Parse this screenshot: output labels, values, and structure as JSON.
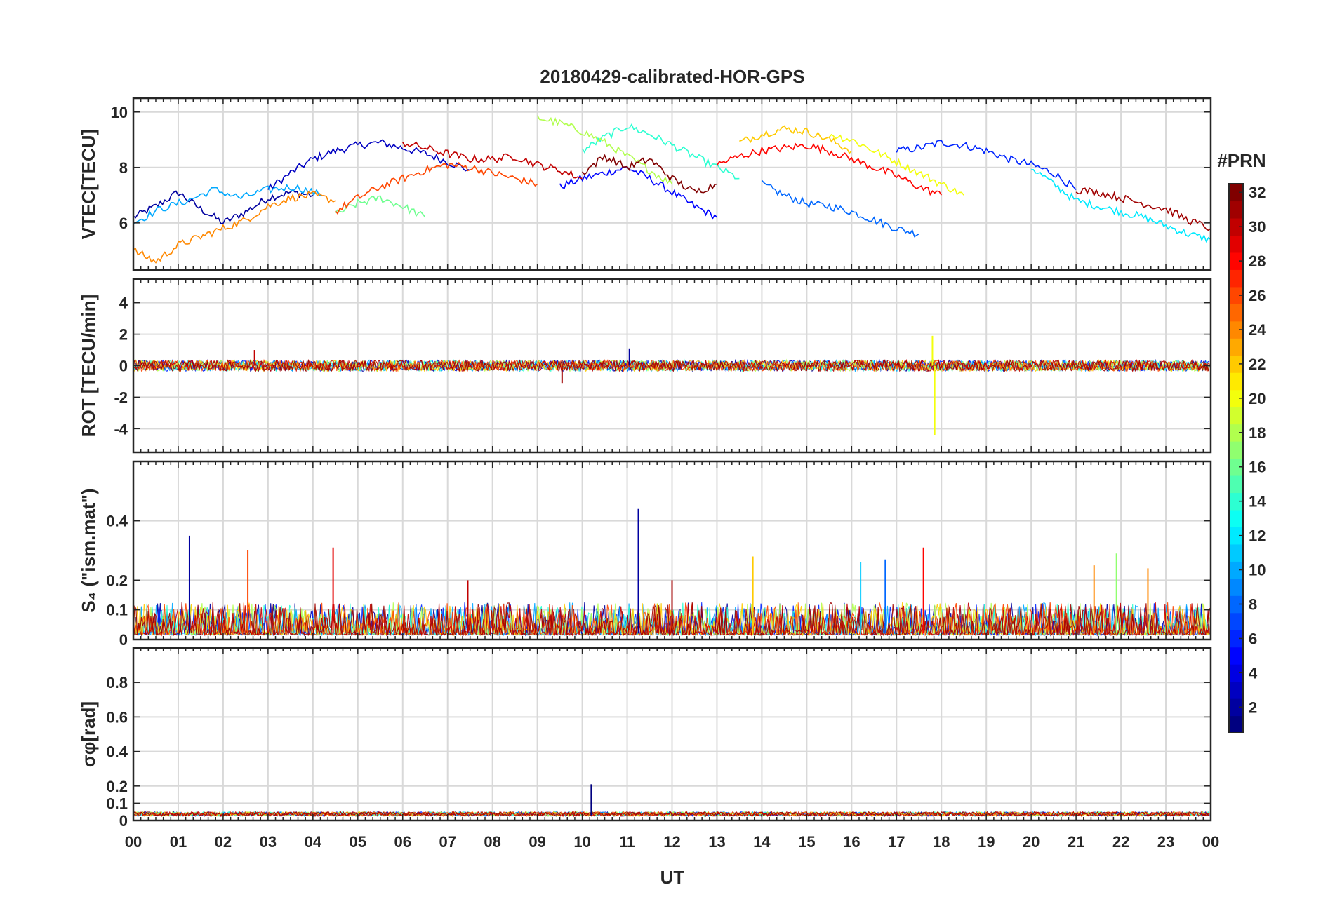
{
  "chart_data": {
    "type": "line",
    "title": "20180429-calibrated-HOR-GPS",
    "xlabel": "UT",
    "x_range": [
      0,
      24
    ],
    "x_tick_labels": [
      "00",
      "01",
      "02",
      "03",
      "04",
      "05",
      "06",
      "07",
      "08",
      "09",
      "10",
      "11",
      "12",
      "13",
      "14",
      "15",
      "16",
      "17",
      "18",
      "19",
      "20",
      "21",
      "22",
      "23",
      "00"
    ],
    "grid": true,
    "colorbar": {
      "label": "#PRN",
      "range": [
        1,
        32
      ],
      "colormap": "jet",
      "tick_labels": [
        "2",
        "4",
        "6",
        "8",
        "10",
        "12",
        "14",
        "16",
        "18",
        "20",
        "22",
        "24",
        "26",
        "28",
        "30",
        "32"
      ],
      "colors": [
        "#00008f",
        "#0000ff",
        "#0080ff",
        "#00ffff",
        "#80ff80",
        "#ffff00",
        "#ff8000",
        "#ff0000",
        "#800000"
      ]
    },
    "panels": [
      {
        "id": "vtec",
        "ylabel": "VTEC[TECU]",
        "ylim": [
          4.3,
          10.5
        ],
        "yticks": [
          "6",
          "8",
          "10"
        ],
        "series": [
          {
            "prn": 2,
            "x": [
              0,
              0.5,
              1,
              1.5,
              2,
              2.5,
              3,
              3.5,
              4
            ],
            "y": [
              6.2,
              6.6,
              7.1,
              6.5,
              6.0,
              6.4,
              6.9,
              7.1,
              7.0
            ]
          },
          {
            "prn": 3,
            "x": [
              3,
              3.5,
              4,
              4.5,
              5,
              5.5,
              6,
              6.5,
              7,
              7.5
            ],
            "y": [
              7.2,
              7.8,
              8.3,
              8.6,
              8.8,
              8.9,
              8.7,
              8.5,
              8.2,
              7.9
            ]
          },
          {
            "prn": 5,
            "x": [
              9.5,
              10,
              10.5,
              11,
              11.5,
              12,
              12.5,
              13
            ],
            "y": [
              7.3,
              7.6,
              7.8,
              8.0,
              7.6,
              7.1,
              6.6,
              6.2
            ]
          },
          {
            "prn": 6,
            "x": [
              17,
              17.5,
              18,
              18.5,
              19,
              19.5,
              20,
              20.5,
              21
            ],
            "y": [
              8.6,
              8.7,
              8.9,
              8.8,
              8.6,
              8.3,
              8.1,
              7.8,
              7.2
            ]
          },
          {
            "prn": 8,
            "x": [
              14,
              14.5,
              15,
              15.5,
              16,
              16.5,
              17,
              17.5
            ],
            "y": [
              7.4,
              7.0,
              6.7,
              6.6,
              6.4,
              6.1,
              5.8,
              5.6
            ]
          },
          {
            "prn": 10,
            "x": [
              0,
              0.6,
              1.2,
              1.8,
              2.4,
              3,
              3.6,
              4.2
            ],
            "y": [
              6.0,
              6.5,
              6.8,
              7.2,
              6.9,
              7.2,
              7.3,
              7.0
            ]
          },
          {
            "prn": 12,
            "x": [
              20,
              20.5,
              21,
              21.5,
              22,
              22.5,
              23,
              23.5,
              24
            ],
            "y": [
              8.0,
              7.4,
              6.8,
              6.6,
              6.4,
              6.2,
              5.9,
              5.6,
              5.4
            ]
          },
          {
            "prn": 14,
            "x": [
              10,
              10.5,
              11,
              11.5,
              12,
              12.5,
              13,
              13.5
            ],
            "y": [
              8.6,
              9.1,
              9.5,
              9.2,
              8.8,
              8.4,
              8.0,
              7.6
            ]
          },
          {
            "prn": 16,
            "x": [
              4.5,
              5,
              5.5,
              6,
              6.5
            ],
            "y": [
              6.3,
              6.7,
              6.9,
              6.6,
              6.2
            ]
          },
          {
            "prn": 18,
            "x": [
              9,
              9.5,
              10,
              10.5,
              11,
              11.5,
              12
            ],
            "y": [
              9.8,
              9.6,
              9.3,
              8.9,
              8.4,
              7.9,
              7.4
            ]
          },
          {
            "prn": 20,
            "x": [
              15.5,
              16,
              16.5,
              17,
              17.5,
              18,
              18.5
            ],
            "y": [
              9.2,
              9.0,
              8.6,
              8.2,
              7.8,
              7.4,
              7.0
            ]
          },
          {
            "prn": 22,
            "x": [
              13.5,
              14,
              14.5,
              15,
              15.5,
              16
            ],
            "y": [
              8.9,
              9.2,
              9.4,
              9.3,
              9.0,
              8.6
            ]
          },
          {
            "prn": 24,
            "x": [
              0,
              0.5,
              1,
              1.5,
              2,
              2.5,
              3,
              3.5,
              4,
              4.5
            ],
            "y": [
              5.0,
              4.6,
              5.2,
              5.5,
              5.8,
              6.1,
              6.6,
              6.9,
              7.0,
              6.8
            ]
          },
          {
            "prn": 26,
            "x": [
              4.5,
              5,
              5.5,
              6,
              6.5,
              7,
              7.5,
              8,
              8.5,
              9
            ],
            "y": [
              6.4,
              6.9,
              7.3,
              7.6,
              7.9,
              8.1,
              8.0,
              7.8,
              7.6,
              7.4
            ]
          },
          {
            "prn": 28,
            "x": [
              13,
              13.5,
              14,
              14.5,
              15,
              15.5,
              16,
              16.5,
              17,
              17.5,
              18
            ],
            "y": [
              8.1,
              8.4,
              8.6,
              8.7,
              8.8,
              8.6,
              8.3,
              8.0,
              7.7,
              7.3,
              7.0
            ]
          },
          {
            "prn": 30,
            "x": [
              6,
              6.5,
              7,
              7.5,
              8,
              8.5,
              9,
              9.5,
              10
            ],
            "y": [
              8.9,
              8.7,
              8.5,
              8.3,
              8.3,
              8.4,
              8.1,
              7.9,
              7.6
            ]
          },
          {
            "prn": 32,
            "x": [
              10,
              10.5,
              11,
              11.5,
              12,
              12.5,
              13
            ],
            "y": [
              7.8,
              8.4,
              8.0,
              8.3,
              7.6,
              7.1,
              7.4
            ]
          },
          {
            "prn": 31,
            "x": [
              21,
              21.5,
              22,
              22.5,
              23,
              23.5,
              24
            ],
            "y": [
              7.2,
              7.1,
              6.9,
              6.7,
              6.5,
              6.1,
              5.8
            ]
          }
        ]
      },
      {
        "id": "rot",
        "ylabel": "ROT [TECU/min]",
        "ylim": [
          -5.5,
          5.5
        ],
        "yticks": [
          "-4",
          "-2",
          "0",
          "2",
          "4"
        ],
        "spikes": [
          {
            "prn": 20,
            "x": 17.85,
            "y": -4.4
          },
          {
            "prn": 20,
            "x": 17.8,
            "y": 1.9
          },
          {
            "prn": 31,
            "x": 9.55,
            "y": -1.1
          },
          {
            "prn": 2,
            "x": 11.05,
            "y": 1.1
          },
          {
            "prn": 30,
            "x": 2.7,
            "y": 1.0
          }
        ]
      },
      {
        "id": "s4",
        "ylabel": "S₄ (\"ism.mat\")",
        "ylim": [
          0,
          0.6
        ],
        "yticks": [
          "0",
          "0.1",
          "0.2",
          "0.4"
        ],
        "spikes": [
          {
            "prn": 2,
            "x": 11.25,
            "y": 0.44
          },
          {
            "prn": 2,
            "x": 1.25,
            "y": 0.35
          },
          {
            "prn": 29,
            "x": 4.45,
            "y": 0.31
          },
          {
            "prn": 28,
            "x": 17.6,
            "y": 0.31
          },
          {
            "prn": 26,
            "x": 2.55,
            "y": 0.3
          },
          {
            "prn": 17,
            "x": 21.9,
            "y": 0.29
          },
          {
            "prn": 22,
            "x": 13.8,
            "y": 0.28
          },
          {
            "prn": 8,
            "x": 16.75,
            "y": 0.27
          },
          {
            "prn": 11,
            "x": 16.2,
            "y": 0.26
          },
          {
            "prn": 24,
            "x": 21.4,
            "y": 0.25
          },
          {
            "prn": 24,
            "x": 22.6,
            "y": 0.24
          },
          {
            "prn": 31,
            "x": 12.0,
            "y": 0.2
          },
          {
            "prn": 30,
            "x": 7.45,
            "y": 0.2
          }
        ]
      },
      {
        "id": "sigma_phi",
        "ylabel": "σφ[rad]",
        "ylim": [
          0,
          1.0
        ],
        "yticks": [
          "0",
          "0.1",
          "0.2",
          "0.4",
          "0.6",
          "0.8"
        ],
        "spikes": [
          {
            "prn": 1,
            "x": 10.2,
            "y": 0.21
          }
        ]
      }
    ]
  }
}
